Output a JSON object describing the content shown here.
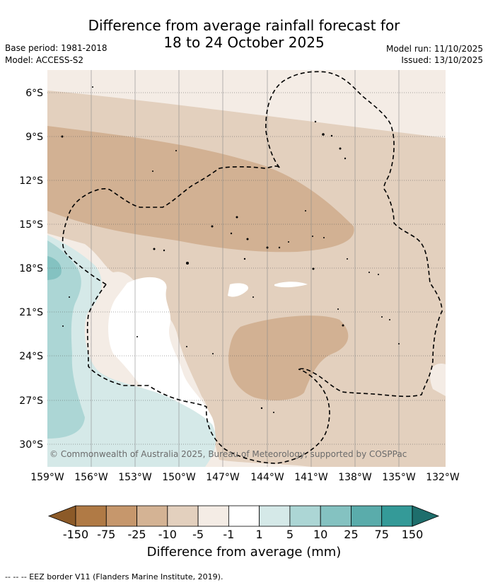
{
  "header": {
    "title_line1": "Difference from average rainfall forecast for",
    "title_line2": "18 to 24 October 2025",
    "base_period": "Base period: 1981-2018",
    "model": "Model: ACCESS-S2",
    "model_run": "Model run: 11/10/2025",
    "issued": "Issued: 13/10/2025"
  },
  "axes": {
    "lat_labels": [
      "6°S",
      "9°S",
      "12°S",
      "15°S",
      "18°S",
      "21°S",
      "24°S",
      "27°S",
      "30°S"
    ],
    "lon_labels": [
      "159°W",
      "156°W",
      "153°W",
      "150°W",
      "147°W",
      "144°W",
      "141°W",
      "138°W",
      "135°W",
      "132°W"
    ]
  },
  "credit": "© Commonwealth of Australia 2025, Bureau of Meteorology, supported by COSPPac",
  "colorbar": {
    "ticks": [
      "-150",
      "-75",
      "-25",
      "-10",
      "-5",
      "-1",
      "1",
      "5",
      "10",
      "25",
      "75",
      "150"
    ],
    "colors": [
      "#8c5a28",
      "#b07a45",
      "#c6976c",
      "#d4b394",
      "#e3d0be",
      "#f4ece5",
      "#ffffff",
      "#d5e9e8",
      "#acd6d5",
      "#84c2c1",
      "#5aacab",
      "#349a98",
      "#1e6e6c"
    ],
    "label": "Difference from average (mm)"
  },
  "footnote": "--  --  -- EEZ border V11 (Flanders Marine Institute, 2019)."
}
